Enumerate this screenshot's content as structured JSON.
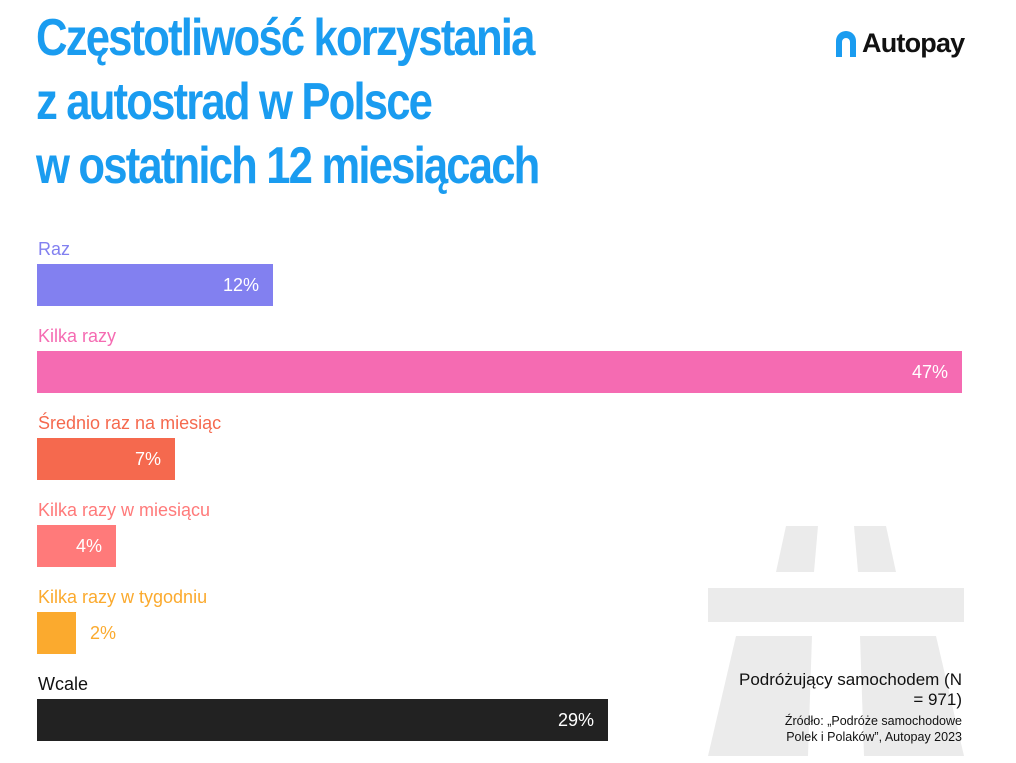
{
  "header": {
    "title_lines": [
      "Częstotliwość korzystania",
      "z autostrad w Polsce",
      "w ostatnich 12 miesiącach"
    ],
    "logo_text": "Autopay",
    "colors": {
      "title": "#1a9cf0",
      "logo_mark": "#1a9cf0"
    }
  },
  "chart_data": {
    "type": "bar",
    "orientation": "horizontal",
    "categories": [
      "Raz",
      "Kilka razy",
      "Średnio raz na miesiąc",
      "Kilka razy w miesiącu",
      "Kilka razy w tygodniu",
      "Wcale"
    ],
    "values": [
      12,
      47,
      7,
      4,
      2,
      29
    ],
    "value_labels": [
      "12%",
      "47%",
      "7%",
      "4%",
      "2%",
      "29%"
    ],
    "colors": [
      "#8280f0",
      "#f56bb2",
      "#f5694e",
      "#ff7a7a",
      "#fbaa2e",
      "#222222"
    ],
    "xlim": [
      0,
      47
    ],
    "title": "",
    "xlabel": "",
    "ylabel": "",
    "grid": false,
    "legend": "none"
  },
  "footer": {
    "sample": "Podróżujący samochodem (N = 971)",
    "source": "Źródło: „Podróże samochodowe Polek i Polaków”, Autopay 2023"
  },
  "watermark": {
    "icon": "highway-road-icon",
    "color": "#ebebeb"
  }
}
